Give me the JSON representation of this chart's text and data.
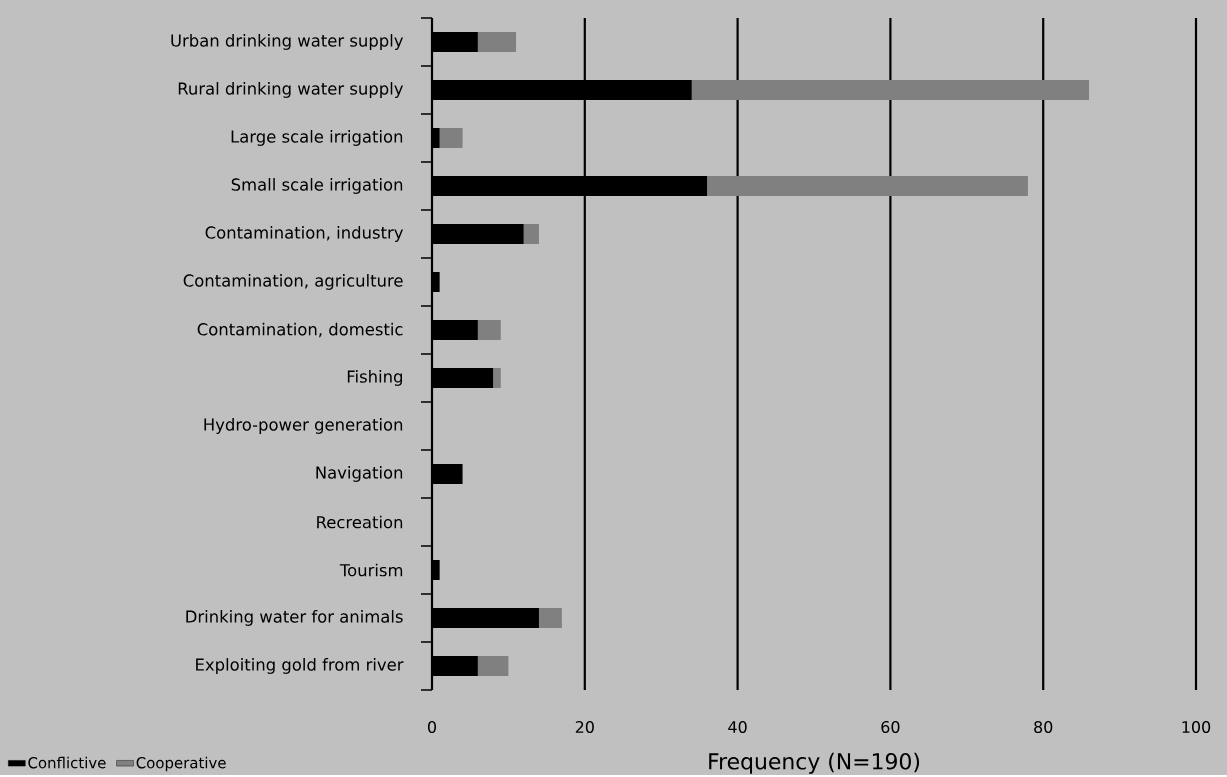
{
  "chart_data": {
    "type": "bar",
    "orientation": "horizontal",
    "stacked": true,
    "xlabel": "Frequency (N=190)",
    "categories": [
      "Urban drinking water supply",
      "Rural drinking water supply",
      "Large scale irrigation",
      "Small scale irrigation",
      "Contamination, industry",
      "Contamination, agriculture",
      "Contamination, domestic",
      "Fishing",
      "Hydro-power generation",
      "Navigation",
      "Recreation",
      "Tourism",
      "Drinking water for animals",
      "Exploiting gold from river"
    ],
    "series": [
      {
        "name": "Conflictive",
        "color": "#000000",
        "values": [
          6,
          34,
          1,
          36,
          12,
          1,
          6,
          8,
          0,
          4,
          0,
          1,
          14,
          6
        ]
      },
      {
        "name": "Cooperative",
        "color": "#808080",
        "values": [
          5,
          52,
          3,
          42,
          2,
          0,
          3,
          1,
          0,
          0,
          0,
          0,
          3,
          4
        ]
      }
    ],
    "xlim": [
      0,
      100
    ],
    "xticks": [
      0,
      20,
      40,
      60,
      80,
      100
    ],
    "grid": "x",
    "legend": "bottom left"
  }
}
